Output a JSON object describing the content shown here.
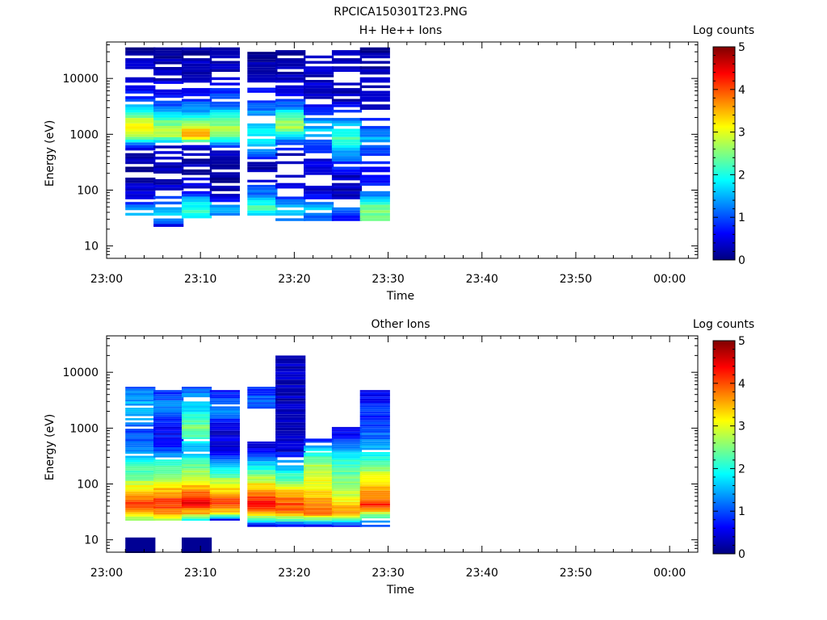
{
  "page_title": "RPCICA150301T23.PNG",
  "chart_data": [
    {
      "type": "heatmap",
      "title": "H+ He++ Ions",
      "xlabel": "Time",
      "ylabel": "Energy (eV)",
      "x_tick_labels": [
        "23:00",
        "23:10",
        "23:20",
        "23:30",
        "23:40",
        "23:50",
        "00:00"
      ],
      "x_range": [
        "23:00",
        "00:03"
      ],
      "y_scale": "log",
      "y_tick_labels": [
        "10",
        "100",
        "1000",
        "10000"
      ],
      "y_range": [
        6,
        45000
      ],
      "colorbar": {
        "label": "Log counts",
        "ticks": [
          "0",
          "1",
          "2",
          "3",
          "4",
          "5"
        ],
        "range": [
          0,
          5
        ],
        "colormap": "jet"
      },
      "time_bins": [
        "23:02",
        "23:05",
        "23:08",
        "23:11",
        "23:15",
        "23:18",
        "23:21",
        "23:24",
        "23:27"
      ],
      "bin_width_minutes": 3.2,
      "columns": [
        {
          "emin": 28,
          "emax": 36000,
          "profile": [
            [
              28,
              0.9
            ],
            [
              40,
              1.8
            ],
            [
              55,
              1.0
            ],
            [
              80,
              0.5
            ],
            [
              150,
              0.2
            ],
            [
              300,
              0.2
            ],
            [
              500,
              0.2
            ],
            [
              900,
              2.5
            ],
            [
              1400,
              3.2
            ],
            [
              2200,
              2.4
            ],
            [
              3500,
              1.2
            ],
            [
              8000,
              0.3
            ],
            [
              36000,
              0.2
            ]
          ],
          "fill": 0.35
        },
        {
          "emin": 22,
          "emax": 36000,
          "profile": [
            [
              22,
              0.4
            ],
            [
              35,
              2.0
            ],
            [
              55,
              1.2
            ],
            [
              100,
              0.4
            ],
            [
              300,
              0.2
            ],
            [
              600,
              0.3
            ],
            [
              900,
              2.6
            ],
            [
              1300,
              2.8
            ],
            [
              2000,
              2.0
            ],
            [
              3500,
              0.9
            ],
            [
              10000,
              0.3
            ],
            [
              36000,
              0.2
            ]
          ],
          "fill": 0.3
        },
        {
          "emin": 28,
          "emax": 36000,
          "profile": [
            [
              28,
              1.5
            ],
            [
              45,
              2.2
            ],
            [
              70,
              1.4
            ],
            [
              100,
              0.5
            ],
            [
              250,
              0.2
            ],
            [
              600,
              0.3
            ],
            [
              900,
              3.7
            ],
            [
              1200,
              3.4
            ],
            [
              1800,
              2.2
            ],
            [
              3000,
              1.2
            ],
            [
              10000,
              0.3
            ],
            [
              36000,
              0.2
            ]
          ],
          "fill": 0.4
        },
        {
          "emin": 28,
          "emax": 36000,
          "profile": [
            [
              28,
              0.4
            ],
            [
              45,
              1.5
            ],
            [
              70,
              0.5
            ],
            [
              120,
              0.2
            ],
            [
              500,
              0.3
            ],
            [
              900,
              2.4
            ],
            [
              1200,
              2.8
            ],
            [
              2000,
              2.3
            ],
            [
              3000,
              1.3
            ],
            [
              10000,
              0.3
            ],
            [
              36000,
              0.2
            ]
          ],
          "fill": 0.4
        },
        {
          "emin": 35,
          "emax": 30000,
          "profile": [
            [
              35,
              1.8
            ],
            [
              50,
              2.2
            ],
            [
              80,
              1.3
            ],
            [
              150,
              0.5
            ],
            [
              300,
              0.2
            ],
            [
              600,
              1.6
            ],
            [
              1000,
              1.9
            ],
            [
              2000,
              1.5
            ],
            [
              3500,
              1.0
            ],
            [
              8000,
              0.4
            ],
            [
              30000,
              0.2
            ]
          ],
          "fill": 0.45
        },
        {
          "emin": 28,
          "emax": 36000,
          "profile": [
            [
              28,
              1.0
            ],
            [
              45,
              2.0
            ],
            [
              70,
              1.0
            ],
            [
              150,
              0.2
            ],
            [
              400,
              0.3
            ],
            [
              900,
              1.5
            ],
            [
              1300,
              2.8
            ],
            [
              2000,
              2.5
            ],
            [
              3000,
              1.2
            ],
            [
              8000,
              0.3
            ],
            [
              36000,
              0.2
            ]
          ],
          "fill": 0.4
        },
        {
          "emin": 28,
          "emax": 36000,
          "profile": [
            [
              28,
              1.0
            ],
            [
              45,
              1.6
            ],
            [
              70,
              0.7
            ],
            [
              150,
              0.2
            ],
            [
              400,
              0.6
            ],
            [
              800,
              1.1
            ],
            [
              1200,
              1.6
            ],
            [
              2000,
              1.2
            ],
            [
              4000,
              0.4
            ],
            [
              36000,
              0.2
            ]
          ],
          "fill": 0.35
        },
        {
          "emin": 28,
          "emax": 36000,
          "profile": [
            [
              28,
              0.6
            ],
            [
              45,
              1.3
            ],
            [
              70,
              0.4
            ],
            [
              150,
              0.2
            ],
            [
              400,
              1.2
            ],
            [
              800,
              2.2
            ],
            [
              1200,
              1.9
            ],
            [
              2000,
              1.0
            ],
            [
              4000,
              0.3
            ],
            [
              36000,
              0.2
            ]
          ],
          "fill": 0.35
        },
        {
          "emin": 28,
          "emax": 36000,
          "profile": [
            [
              28,
              2.2
            ],
            [
              45,
              2.6
            ],
            [
              70,
              1.5
            ],
            [
              120,
              0.8
            ],
            [
              200,
              0.6
            ],
            [
              400,
              0.8
            ],
            [
              800,
              1.5
            ],
            [
              1200,
              1.0
            ],
            [
              2000,
              0.5
            ],
            [
              5000,
              0.3
            ],
            [
              36000,
              0.2
            ]
          ],
          "fill": 0.45
        }
      ]
    },
    {
      "type": "heatmap",
      "title": "Other Ions",
      "xlabel": "Time",
      "ylabel": "Energy (eV)",
      "x_tick_labels": [
        "23:00",
        "23:10",
        "23:20",
        "23:30",
        "23:40",
        "23:50",
        "00:00"
      ],
      "x_range": [
        "23:00",
        "00:03"
      ],
      "y_scale": "log",
      "y_tick_labels": [
        "10",
        "100",
        "1000",
        "10000"
      ],
      "y_range": [
        6,
        45000
      ],
      "colorbar": {
        "label": "Log counts",
        "ticks": [
          "0",
          "1",
          "2",
          "3",
          "4",
          "5"
        ],
        "range": [
          0,
          5
        ],
        "colormap": "jet"
      },
      "time_bins": [
        "23:02",
        "23:05",
        "23:08",
        "23:11",
        "23:15",
        "23:18",
        "23:21",
        "23:24",
        "23:27"
      ],
      "bin_width_minutes": 3.2,
      "columns": [
        {
          "emin": 22,
          "emax": 5500,
          "profile": [
            [
              22,
              2.3
            ],
            [
              30,
              3.5
            ],
            [
              45,
              4.1
            ],
            [
              70,
              3.5
            ],
            [
              120,
              2.6
            ],
            [
              250,
              2.0
            ],
            [
              400,
              1.2
            ],
            [
              900,
              1.0
            ],
            [
              2000,
              1.6
            ],
            [
              3500,
              1.4
            ],
            [
              5500,
              1.0
            ]
          ],
          "fill": 0.85
        },
        {
          "emin": 22,
          "emax": 4800,
          "profile": [
            [
              22,
              2.6
            ],
            [
              30,
              3.7
            ],
            [
              45,
              4.2
            ],
            [
              70,
              3.6
            ],
            [
              120,
              2.8
            ],
            [
              250,
              2.0
            ],
            [
              400,
              0.9
            ],
            [
              1000,
              0.5
            ],
            [
              2000,
              1.3
            ],
            [
              3500,
              1.1
            ],
            [
              4800,
              0.8
            ]
          ],
          "fill": 0.8
        },
        {
          "emin": 22,
          "emax": 5500,
          "profile": [
            [
              22,
              1.5
            ],
            [
              30,
              3.5
            ],
            [
              45,
              4.4
            ],
            [
              70,
              3.8
            ],
            [
              120,
              3.0
            ],
            [
              250,
              2.2
            ],
            [
              400,
              1.5
            ],
            [
              1000,
              2.5
            ],
            [
              2000,
              1.8
            ],
            [
              3500,
              1.5
            ],
            [
              5500,
              1.0
            ]
          ],
          "fill": 0.85
        },
        {
          "emin": 22,
          "emax": 4800,
          "profile": [
            [
              22,
              0.3
            ],
            [
              30,
              3.3
            ],
            [
              45,
              4.1
            ],
            [
              70,
              3.5
            ],
            [
              120,
              2.6
            ],
            [
              250,
              1.4
            ],
            [
              400,
              0.5
            ],
            [
              1000,
              0.4
            ],
            [
              2000,
              1.3
            ],
            [
              3500,
              0.9
            ],
            [
              4800,
              0.7
            ]
          ],
          "fill": 0.8
        },
        {
          "emin": 17,
          "emax": 5500,
          "profile": [
            [
              17,
              0.3
            ],
            [
              30,
              3.6
            ],
            [
              45,
              4.4
            ],
            [
              70,
              3.8
            ],
            [
              120,
              2.8
            ],
            [
              250,
              1.5
            ],
            [
              400,
              0.6
            ],
            [
              900,
              0.2
            ],
            [
              2000,
              1.2
            ],
            [
              3500,
              1.0
            ],
            [
              5500,
              0.8
            ]
          ],
          "fill": 0.8,
          "gap": [
            600,
            2200
          ]
        },
        {
          "emin": 17,
          "emax": 20000,
          "profile": [
            [
              17,
              0.4
            ],
            [
              30,
              3.8
            ],
            [
              45,
              4.0
            ],
            [
              70,
              3.5
            ],
            [
              120,
              2.3
            ],
            [
              250,
              1.3
            ],
            [
              400,
              0.4
            ],
            [
              1000,
              0.2
            ],
            [
              2200,
              0.3
            ],
            [
              20000,
              0.3
            ]
          ],
          "fill": 0.75
        },
        {
          "emin": 17,
          "emax": 650,
          "profile": [
            [
              17,
              0.4
            ],
            [
              30,
              4.0
            ],
            [
              45,
              3.6
            ],
            [
              70,
              3.3
            ],
            [
              120,
              3.0
            ],
            [
              200,
              2.8
            ],
            [
              350,
              2.0
            ],
            [
              500,
              1.3
            ],
            [
              650,
              0.5
            ]
          ],
          "fill": 0.85
        },
        {
          "emin": 17,
          "emax": 1050,
          "profile": [
            [
              17,
              0.4
            ],
            [
              30,
              3.8
            ],
            [
              45,
              3.2
            ],
            [
              70,
              2.8
            ],
            [
              120,
              2.5
            ],
            [
              250,
              2.1
            ],
            [
              400,
              1.5
            ],
            [
              650,
              0.8
            ],
            [
              1050,
              0.4
            ]
          ],
          "fill": 0.8
        },
        {
          "emin": 17,
          "emax": 4800,
          "profile": [
            [
              17,
              0.8
            ],
            [
              25,
              2.1
            ],
            [
              40,
              4.2
            ],
            [
              60,
              3.8
            ],
            [
              100,
              3.2
            ],
            [
              200,
              2.6
            ],
            [
              400,
              1.6
            ],
            [
              700,
              1.1
            ],
            [
              4800,
              0.6
            ]
          ],
          "fill": 0.8
        }
      ],
      "extra_blocks": [
        {
          "time": "23:02",
          "emin": 5.8,
          "emax": 11,
          "value": 0.1
        },
        {
          "time": "23:08",
          "emin": 5.8,
          "emax": 11,
          "value": 0.1
        }
      ]
    }
  ]
}
